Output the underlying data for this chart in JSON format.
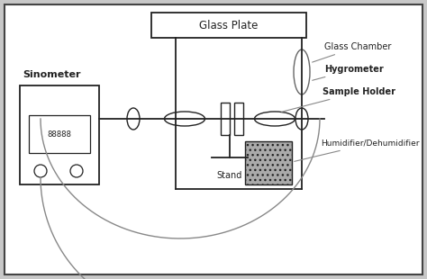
{
  "bg_color": "#c8c8c8",
  "line_color": "#222222",
  "gray_line": "#888888",
  "title": "Glass Plate",
  "labels": {
    "sinometer": "Sinometer",
    "display": "88888",
    "glass_chamber": "Glass Chamber",
    "hygrometer": "Hygrometer",
    "sample_holder": "Sample Holder",
    "humidifier": "Humidifier/Dehumidifier",
    "stand": "Stand"
  },
  "figsize": [
    4.74,
    3.1
  ],
  "dpi": 100
}
